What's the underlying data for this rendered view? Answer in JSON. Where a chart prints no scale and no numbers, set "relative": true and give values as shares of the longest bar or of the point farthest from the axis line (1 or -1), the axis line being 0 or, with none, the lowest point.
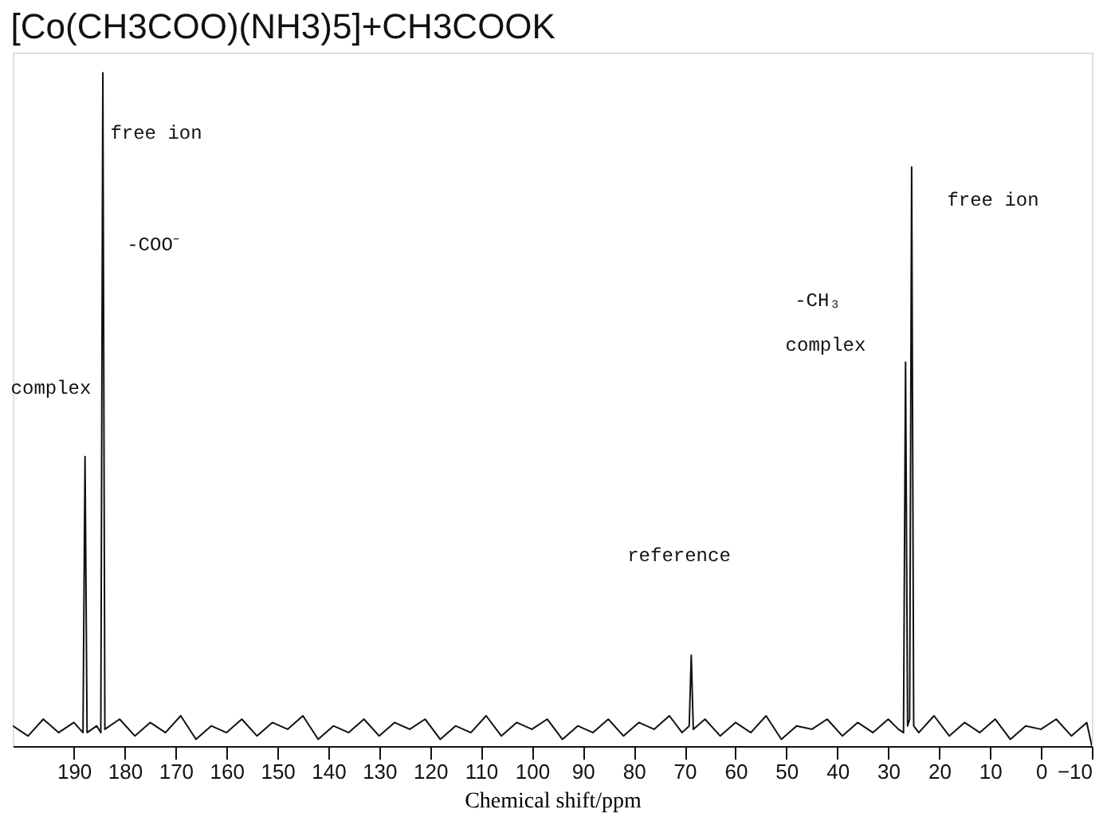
{
  "chart_data": {
    "type": "line",
    "title": "[Co(CH3COO)(NH3)5]+CH3COOK",
    "xlabel": "Chemical shift/ppm",
    "relative": true,
    "color": "#111111",
    "grid": false,
    "marker": "none",
    "line_style": "solid",
    "tick_labels": "x",
    "xlim": [
      202,
      -10
    ],
    "xticks": [
      190,
      180,
      170,
      160,
      150,
      140,
      130,
      120,
      110,
      100,
      90,
      80,
      70,
      60,
      50,
      40,
      30,
      20,
      10,
      0,
      -10
    ],
    "x": [
      202,
      199,
      196,
      193,
      190,
      188.2,
      187.8,
      187.4,
      185.5,
      184.7,
      184.3,
      183.9,
      181,
      178,
      175,
      172,
      169,
      166,
      163,
      160,
      157,
      154,
      151,
      148,
      145,
      142,
      139,
      136,
      133,
      130,
      127,
      124,
      121,
      118,
      115,
      112,
      109,
      106,
      103,
      100,
      97,
      94,
      91,
      88,
      85,
      82,
      79,
      76,
      73,
      70.5,
      69.1,
      68.7,
      68.3,
      66,
      63,
      60,
      57,
      54,
      51,
      48,
      45,
      42,
      39,
      36,
      33,
      30,
      28,
      27,
      26.6,
      26.2,
      25.8,
      25.4,
      25.0,
      24,
      21,
      18,
      15,
      12,
      9,
      6,
      3,
      0,
      -3,
      -6,
      -9,
      -10
    ],
    "values": [
      0.03,
      0.015,
      0.04,
      0.02,
      0.035,
      0.02,
      0.43,
      0.02,
      0.03,
      0.02,
      1,
      0.025,
      0.04,
      0.015,
      0.035,
      0.02,
      0.045,
      0.01,
      0.03,
      0.02,
      0.04,
      0.015,
      0.035,
      0.025,
      0.045,
      0.01,
      0.03,
      0.02,
      0.04,
      0.015,
      0.035,
      0.025,
      0.04,
      0.01,
      0.03,
      0.02,
      0.045,
      0.015,
      0.035,
      0.025,
      0.04,
      0.01,
      0.03,
      0.02,
      0.04,
      0.015,
      0.035,
      0.025,
      0.045,
      0.02,
      0.03,
      0.135,
      0.025,
      0.04,
      0.015,
      0.035,
      0.02,
      0.045,
      0.01,
      0.03,
      0.025,
      0.04,
      0.015,
      0.035,
      0.02,
      0.04,
      0.025,
      0.02,
      0.57,
      0.03,
      0.04,
      0.86,
      0.03,
      0.02,
      0.045,
      0.015,
      0.035,
      0.02,
      0.04,
      0.01,
      0.03,
      0.025,
      0.04,
      0.015,
      0.035,
      0
    ],
    "annotations": [
      "complex",
      "free ion",
      "-COO⁻",
      "reference",
      "-CH₃",
      "complex",
      "free ion"
    ]
  }
}
